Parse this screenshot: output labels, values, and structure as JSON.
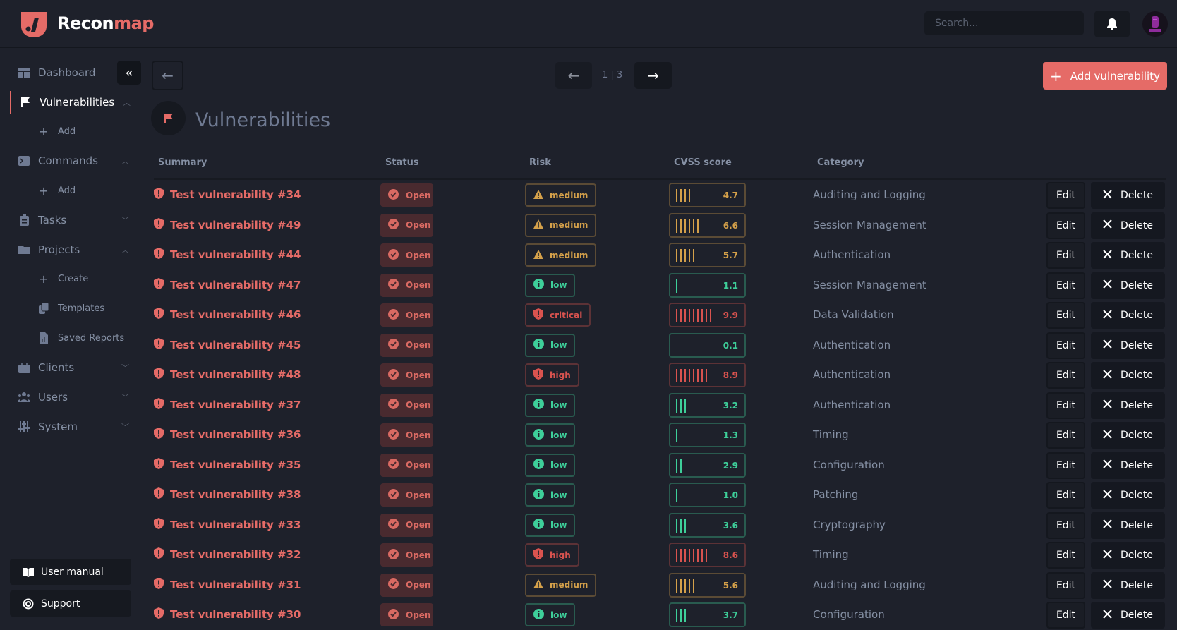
{
  "brand": {
    "name_a": "Recon",
    "name_b": "map"
  },
  "header": {
    "search_placeholder": "Search...",
    "bell_icon": "bell-icon"
  },
  "sidebar": {
    "items": [
      {
        "label": "Dashboard",
        "icon": "dashboard-icon",
        "chevron": ""
      },
      {
        "label": "Vulnerabilities",
        "icon": "flag-icon",
        "chevron": "up",
        "active": true
      },
      {
        "label": "Add",
        "icon": "plus-icon",
        "sub": true
      },
      {
        "label": "Commands",
        "icon": "terminal-icon",
        "chevron": "up"
      },
      {
        "label": "Add",
        "icon": "plus-icon",
        "sub": true
      },
      {
        "label": "Tasks",
        "icon": "clipboard-icon",
        "chevron": "down"
      },
      {
        "label": "Projects",
        "icon": "folder-icon",
        "chevron": "up"
      },
      {
        "label": "Create",
        "icon": "plus-icon",
        "sub": true
      },
      {
        "label": "Templates",
        "icon": "copy-icon",
        "sub": true
      },
      {
        "label": "Saved Reports",
        "icon": "report-icon",
        "sub": true
      },
      {
        "label": "Clients",
        "icon": "briefcase-icon",
        "chevron": "down"
      },
      {
        "label": "Users",
        "icon": "users-icon",
        "chevron": "down"
      },
      {
        "label": "System",
        "icon": "sliders-icon",
        "chevron": "down"
      }
    ],
    "user_manual": "User manual",
    "support": "Support"
  },
  "main": {
    "pagination": "1 | 3",
    "add_button": "Add vulnerability",
    "title": "Vulnerabilities",
    "columns": [
      "Summary",
      "Status",
      "Risk",
      "CVSS score",
      "Category"
    ],
    "edit_label": "Edit",
    "delete_label": "Delete",
    "colors": {
      "critical": "#d9534f",
      "high": "#d9534f",
      "medium": "#d4a04a",
      "low": "#3ecf9a",
      "open": "#d96a63"
    },
    "rows": [
      {
        "summary": "Test vulnerability #34",
        "status": "Open",
        "risk": "medium",
        "cvss": "4.7",
        "category": "Auditing and Logging"
      },
      {
        "summary": "Test vulnerability #49",
        "status": "Open",
        "risk": "medium",
        "cvss": "6.6",
        "category": "Session Management"
      },
      {
        "summary": "Test vulnerability #44",
        "status": "Open",
        "risk": "medium",
        "cvss": "5.7",
        "category": "Authentication"
      },
      {
        "summary": "Test vulnerability #47",
        "status": "Open",
        "risk": "low",
        "cvss": "1.1",
        "category": "Session Management"
      },
      {
        "summary": "Test vulnerability #46",
        "status": "Open",
        "risk": "critical",
        "cvss": "9.9",
        "category": "Data Validation"
      },
      {
        "summary": "Test vulnerability #45",
        "status": "Open",
        "risk": "low",
        "cvss": "0.1",
        "category": "Authentication"
      },
      {
        "summary": "Test vulnerability #48",
        "status": "Open",
        "risk": "high",
        "cvss": "8.9",
        "category": "Authentication"
      },
      {
        "summary": "Test vulnerability #37",
        "status": "Open",
        "risk": "low",
        "cvss": "3.2",
        "category": "Authentication"
      },
      {
        "summary": "Test vulnerability #36",
        "status": "Open",
        "risk": "low",
        "cvss": "1.3",
        "category": "Timing"
      },
      {
        "summary": "Test vulnerability #35",
        "status": "Open",
        "risk": "low",
        "cvss": "2.9",
        "category": "Configuration"
      },
      {
        "summary": "Test vulnerability #38",
        "status": "Open",
        "risk": "low",
        "cvss": "1.0",
        "category": "Patching"
      },
      {
        "summary": "Test vulnerability #33",
        "status": "Open",
        "risk": "low",
        "cvss": "3.6",
        "category": "Cryptography"
      },
      {
        "summary": "Test vulnerability #32",
        "status": "Open",
        "risk": "high",
        "cvss": "8.6",
        "category": "Timing"
      },
      {
        "summary": "Test vulnerability #31",
        "status": "Open",
        "risk": "medium",
        "cvss": "5.6",
        "category": "Auditing and Logging"
      },
      {
        "summary": "Test vulnerability #30",
        "status": "Open",
        "risk": "low",
        "cvss": "3.7",
        "category": "Configuration"
      }
    ]
  }
}
